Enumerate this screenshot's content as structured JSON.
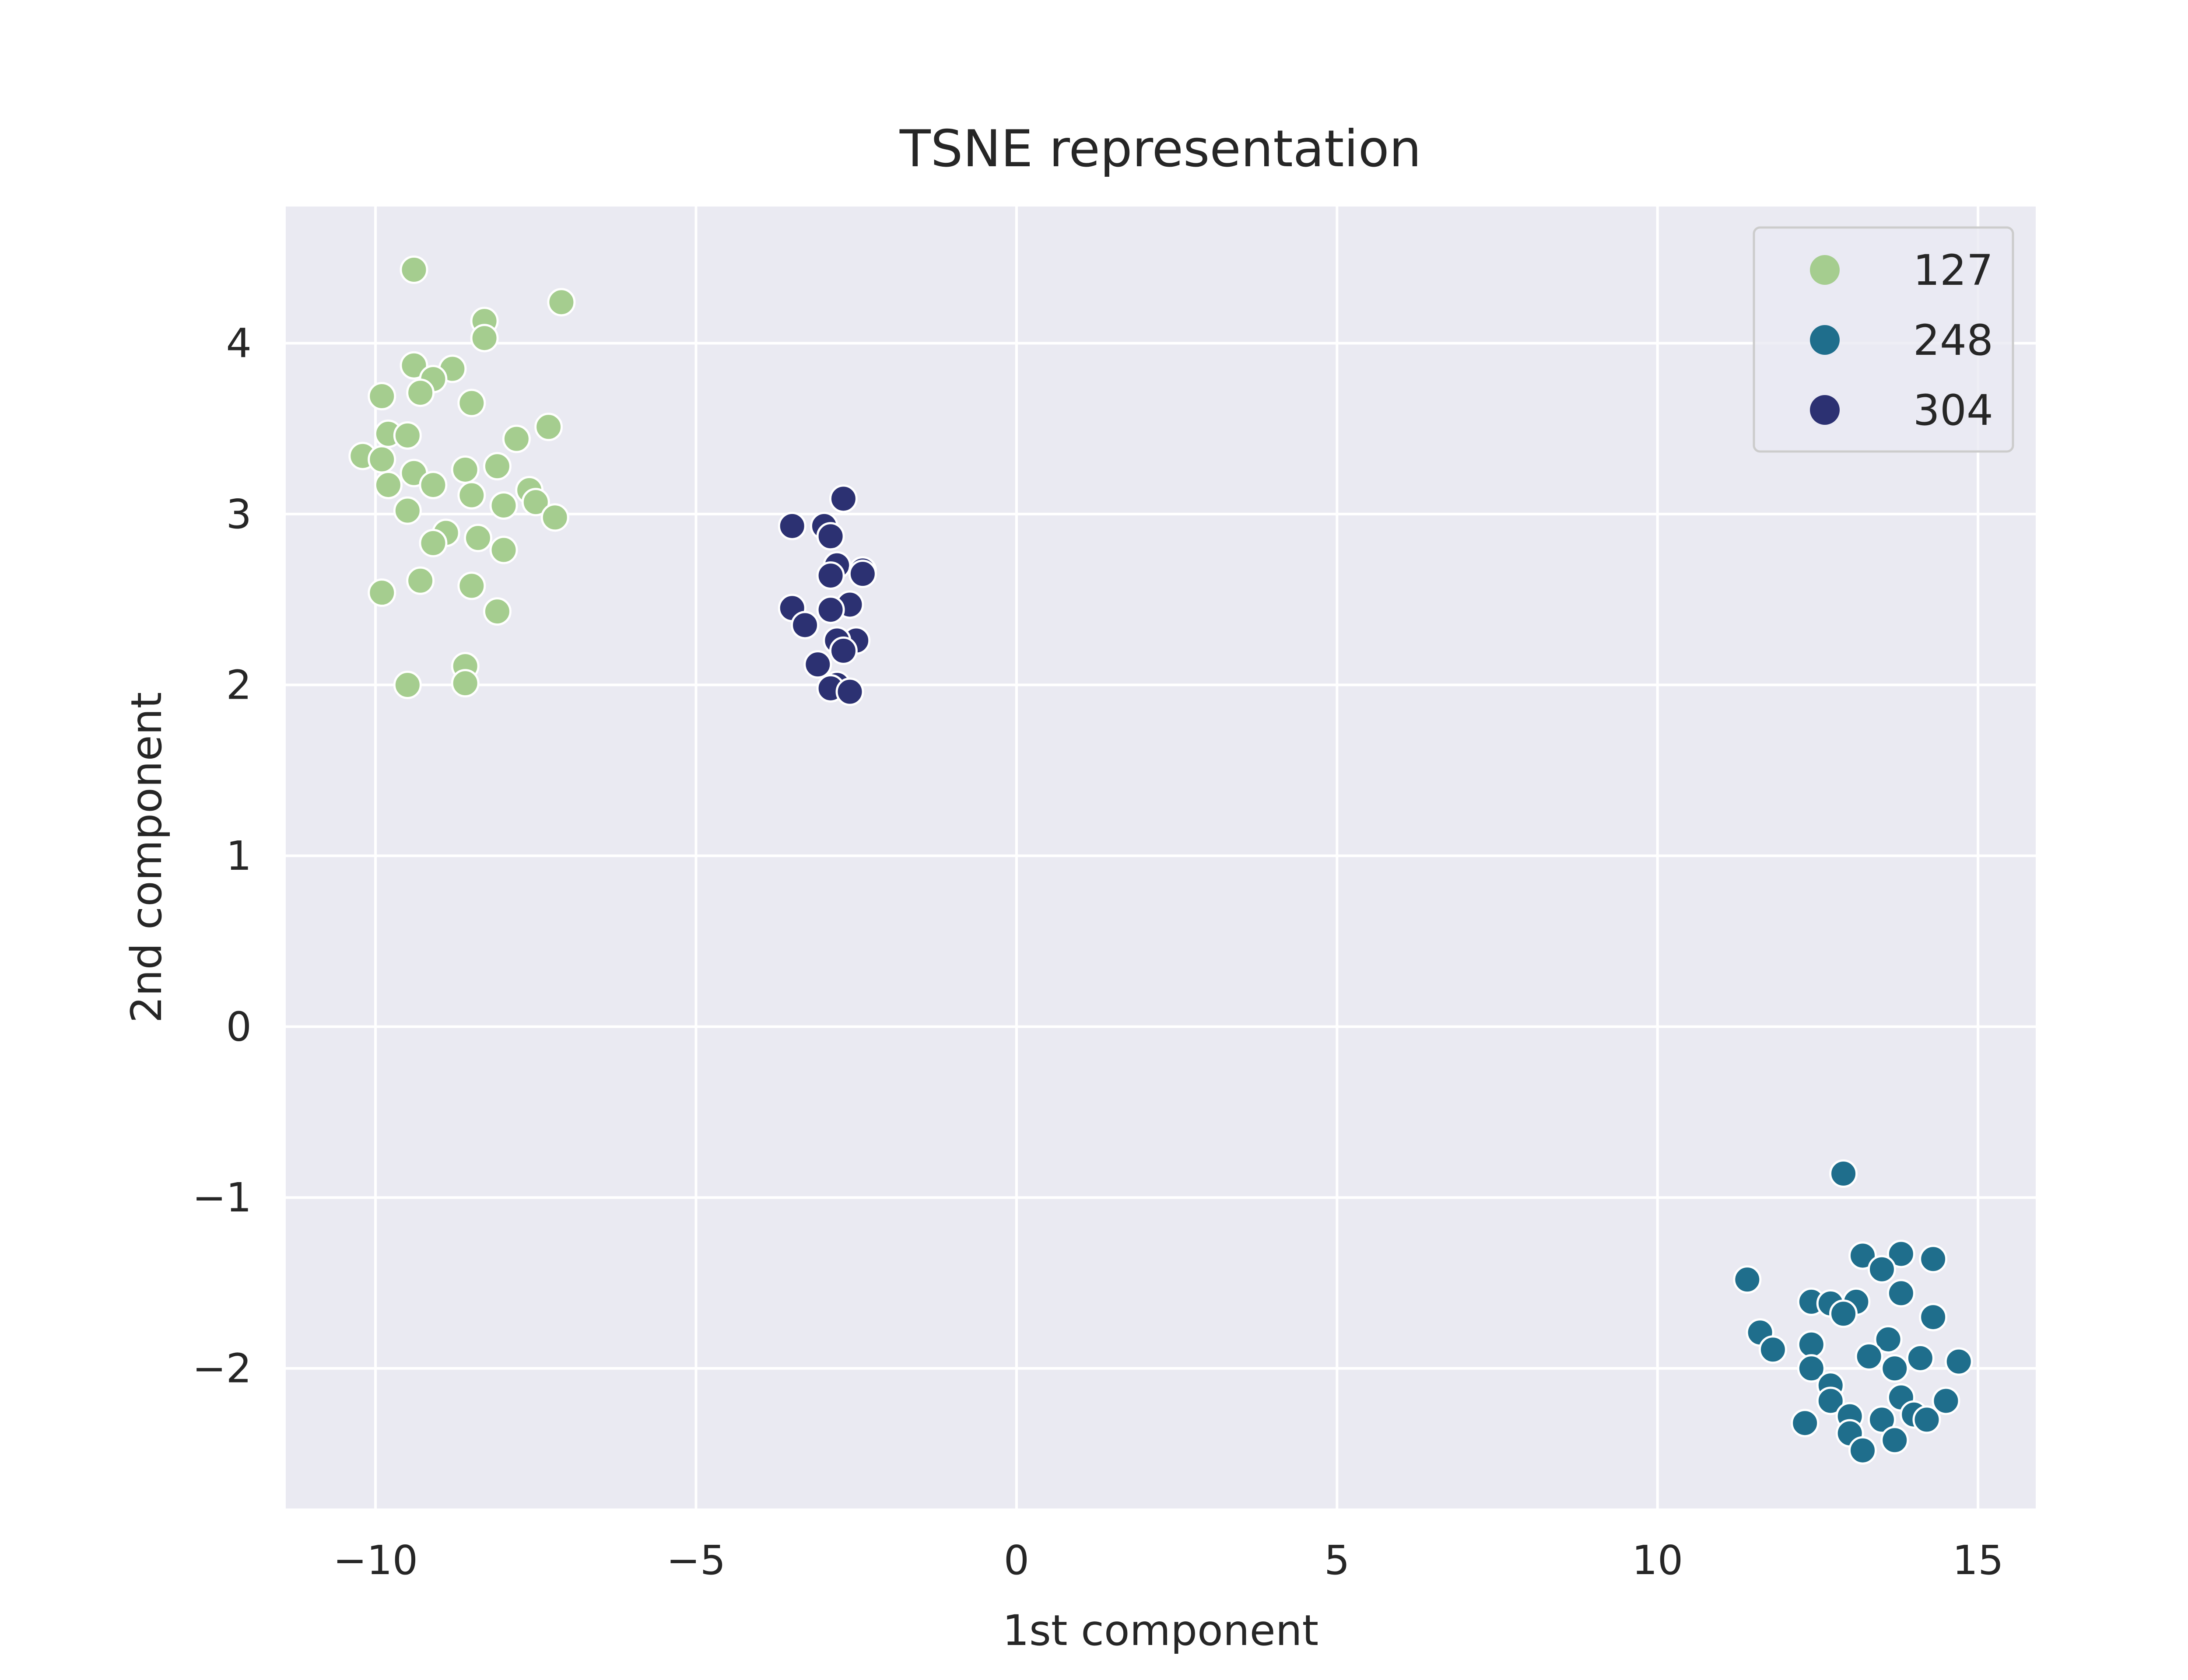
{
  "chart_data": {
    "type": "scatter",
    "title": "TSNE representation",
    "xlabel": "1st component",
    "ylabel": "2nd component",
    "xlim": [
      -11.4,
      15.9
    ],
    "ylim": [
      -2.82,
      4.8
    ],
    "xticks": [
      -10,
      -5,
      0,
      5,
      10,
      15
    ],
    "xtick_labels": [
      "−10",
      "−5",
      "0",
      "5",
      "10",
      "15"
    ],
    "yticks": [
      -2,
      -1,
      0,
      1,
      2,
      3,
      4
    ],
    "ytick_labels": [
      "−2",
      "−1",
      "0",
      "1",
      "2",
      "3",
      "4"
    ],
    "grid": true,
    "legend_position": "top-right",
    "colors": {
      "background": "#eaeaf2",
      "grid": "#ffffff"
    },
    "series": [
      {
        "name": "127",
        "color": "#a5cd8f",
        "points": [
          [
            -9.4,
            4.43
          ],
          [
            -7.1,
            4.24
          ],
          [
            -8.3,
            4.13
          ],
          [
            -8.3,
            4.03
          ],
          [
            -9.4,
            3.87
          ],
          [
            -8.8,
            3.85
          ],
          [
            -9.1,
            3.79
          ],
          [
            -9.3,
            3.71
          ],
          [
            -9.9,
            3.69
          ],
          [
            -8.5,
            3.65
          ],
          [
            -7.3,
            3.51
          ],
          [
            -9.8,
            3.47
          ],
          [
            -9.5,
            3.46
          ],
          [
            -7.8,
            3.44
          ],
          [
            -10.2,
            3.34
          ],
          [
            -9.9,
            3.32
          ],
          [
            -8.6,
            3.26
          ],
          [
            -8.1,
            3.28
          ],
          [
            -9.4,
            3.24
          ],
          [
            -9.8,
            3.17
          ],
          [
            -9.1,
            3.17
          ],
          [
            -7.6,
            3.14
          ],
          [
            -8.5,
            3.11
          ],
          [
            -7.5,
            3.07
          ],
          [
            -8.0,
            3.05
          ],
          [
            -9.5,
            3.02
          ],
          [
            -7.2,
            2.98
          ],
          [
            -8.9,
            2.89
          ],
          [
            -9.1,
            2.83
          ],
          [
            -8.4,
            2.86
          ],
          [
            -8.0,
            2.79
          ],
          [
            -9.3,
            2.61
          ],
          [
            -8.5,
            2.58
          ],
          [
            -9.9,
            2.54
          ],
          [
            -8.1,
            2.43
          ],
          [
            -8.6,
            2.11
          ],
          [
            -9.5,
            2.0
          ],
          [
            -8.6,
            2.01
          ]
        ]
      },
      {
        "name": "248",
        "color": "#1f6e8c",
        "points": [
          [
            12.9,
            -0.86
          ],
          [
            13.2,
            -1.34
          ],
          [
            13.8,
            -1.33
          ],
          [
            14.3,
            -1.36
          ],
          [
            13.5,
            -1.42
          ],
          [
            11.4,
            -1.48
          ],
          [
            13.8,
            -1.56
          ],
          [
            12.4,
            -1.61
          ],
          [
            12.7,
            -1.62
          ],
          [
            13.1,
            -1.61
          ],
          [
            12.9,
            -1.68
          ],
          [
            14.3,
            -1.7
          ],
          [
            11.6,
            -1.79
          ],
          [
            12.4,
            -1.86
          ],
          [
            13.6,
            -1.83
          ],
          [
            11.8,
            -1.89
          ],
          [
            13.3,
            -1.93
          ],
          [
            14.1,
            -1.94
          ],
          [
            14.7,
            -1.96
          ],
          [
            12.4,
            -2.0
          ],
          [
            13.7,
            -2.0
          ],
          [
            12.7,
            -2.1
          ],
          [
            13.8,
            -2.17
          ],
          [
            12.7,
            -2.19
          ],
          [
            14.5,
            -2.19
          ],
          [
            13.0,
            -2.28
          ],
          [
            13.5,
            -2.3
          ],
          [
            14.0,
            -2.27
          ],
          [
            14.2,
            -2.3
          ],
          [
            12.3,
            -2.32
          ],
          [
            13.0,
            -2.38
          ],
          [
            13.7,
            -2.42
          ],
          [
            13.2,
            -2.48
          ]
        ]
      },
      {
        "name": "304",
        "color": "#2c3172",
        "points": [
          [
            -2.7,
            3.09
          ],
          [
            -3.5,
            2.93
          ],
          [
            -3.0,
            2.93
          ],
          [
            -2.9,
            2.87
          ],
          [
            -2.8,
            2.7
          ],
          [
            -2.4,
            2.67
          ],
          [
            -2.4,
            2.65
          ],
          [
            -2.9,
            2.64
          ],
          [
            -3.5,
            2.45
          ],
          [
            -2.6,
            2.47
          ],
          [
            -2.9,
            2.44
          ],
          [
            -3.3,
            2.35
          ],
          [
            -2.5,
            2.26
          ],
          [
            -2.8,
            2.26
          ],
          [
            -2.7,
            2.2
          ],
          [
            -3.1,
            2.12
          ],
          [
            -2.8,
            2.0
          ],
          [
            -2.9,
            1.98
          ],
          [
            -2.6,
            1.96
          ]
        ]
      }
    ]
  }
}
